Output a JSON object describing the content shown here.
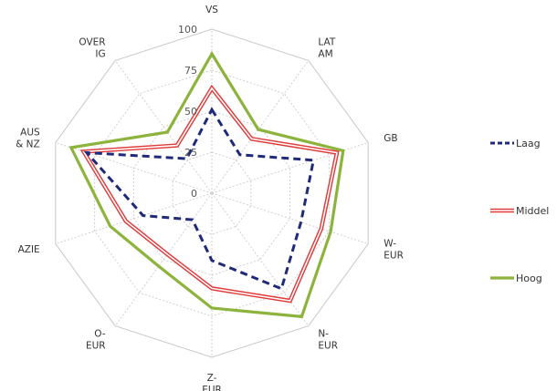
{
  "chart_data": {
    "type": "radar",
    "categories": [
      "VS",
      "LAT AM",
      "GB",
      "W-EUR",
      "N-EUR",
      "Z-EUR",
      "O-EUR",
      "AZIE",
      "AUS & NZ",
      "OVER IG"
    ],
    "category_lines": [
      [
        "VS"
      ],
      [
        "LAT",
        "AM"
      ],
      [
        "GB"
      ],
      [
        "W-",
        "EUR"
      ],
      [
        "N-",
        "EUR"
      ],
      [
        "Z-",
        "EUR"
      ],
      [
        "O-",
        "EUR"
      ],
      [
        "AZIE"
      ],
      [
        "AUS",
        "& NZ"
      ],
      [
        "OVER",
        "IG"
      ]
    ],
    "ticks": [
      0,
      25,
      50,
      75,
      100
    ],
    "rlim": [
      0,
      100
    ],
    "grid": true,
    "legend_position": "right",
    "series": [
      {
        "name": "Laag",
        "values": [
          51,
          29,
          65,
          57,
          72,
          41,
          20,
          44,
          80,
          26
        ],
        "color": "#1f2a7a",
        "style": "dashed"
      },
      {
        "name": "Middel",
        "values": [
          64,
          41,
          80,
          70,
          81,
          58,
          46,
          55,
          82,
          36
        ],
        "color": "#e03b3b",
        "style": "double"
      },
      {
        "name": "Hoog",
        "values": [
          85,
          48,
          84,
          76,
          93,
          70,
          55,
          65,
          90,
          46
        ],
        "color": "#8cb43c",
        "style": "solid"
      }
    ]
  }
}
